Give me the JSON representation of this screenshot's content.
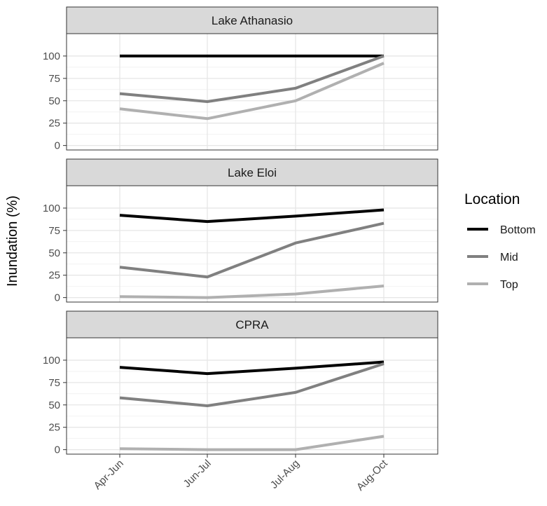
{
  "chart_data": {
    "type": "line",
    "ylabel": "Inundation (%)",
    "categories": [
      "Apr-Jun",
      "Jun-Jul",
      "Jul-Aug",
      "Aug-Oct"
    ],
    "ylim": [
      -5,
      125
    ],
    "yticks": [
      0,
      25,
      50,
      75,
      100
    ],
    "grid": true,
    "legend": {
      "title": "Location",
      "position": "right",
      "entries": [
        "Bottom",
        "Mid",
        "Top"
      ]
    },
    "colors": {
      "Bottom": "#000000",
      "Mid": "#808080",
      "Top": "#b0b0b0"
    },
    "panels": [
      {
        "title": "Lake Athanasio",
        "series": [
          {
            "name": "Bottom",
            "values": [
              100,
              100,
              100,
              100
            ]
          },
          {
            "name": "Mid",
            "values": [
              58,
              49,
              64,
              100
            ]
          },
          {
            "name": "Top",
            "values": [
              41,
              30,
              50,
              92
            ]
          }
        ]
      },
      {
        "title": "Lake Eloi",
        "series": [
          {
            "name": "Bottom",
            "values": [
              92,
              85,
              91,
              98
            ]
          },
          {
            "name": "Mid",
            "values": [
              34,
              23,
              61,
              83
            ]
          },
          {
            "name": "Top",
            "values": [
              1,
              0,
              4,
              13
            ]
          }
        ]
      },
      {
        "title": "CPRA",
        "series": [
          {
            "name": "Bottom",
            "values": [
              92,
              85,
              91,
              98
            ]
          },
          {
            "name": "Mid",
            "values": [
              58,
              49,
              64,
              96
            ]
          },
          {
            "name": "Top",
            "values": [
              1,
              0,
              0,
              15
            ]
          }
        ]
      }
    ]
  }
}
